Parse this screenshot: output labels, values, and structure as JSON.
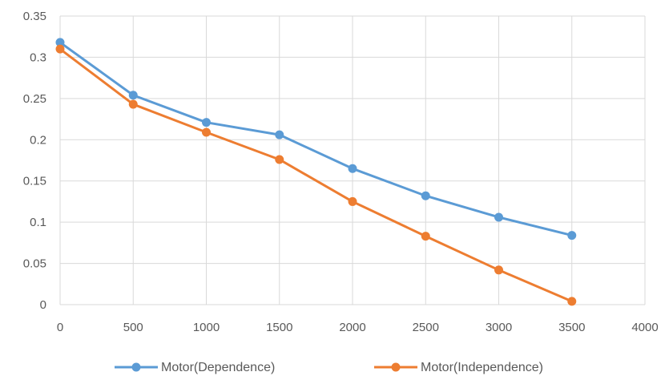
{
  "chart_data": {
    "type": "line",
    "title": "",
    "xlabel": "",
    "ylabel": "",
    "xlim": [
      0,
      4000
    ],
    "ylim": [
      0,
      0.35
    ],
    "x_ticks": [
      "0",
      "500",
      "1000",
      "1500",
      "2000",
      "2500",
      "3000",
      "3500",
      "4000"
    ],
    "y_ticks": [
      "0",
      "0.05",
      "0.1",
      "0.15",
      "0.2",
      "0.25",
      "0.3",
      "0.35"
    ],
    "grid": true,
    "legend_position": "bottom",
    "series": [
      {
        "name": "Motor(Dependence)",
        "color": "#5b9bd5",
        "x": [
          0,
          500,
          1000,
          1500,
          2000,
          2500,
          3000,
          3500
        ],
        "y": [
          0.318,
          0.254,
          0.221,
          0.206,
          0.165,
          0.132,
          0.106,
          0.084
        ]
      },
      {
        "name": "Motor(Independence)",
        "color": "#ed7d31",
        "x": [
          0,
          500,
          1000,
          1500,
          2000,
          2500,
          3000,
          3500
        ],
        "y": [
          0.31,
          0.243,
          0.209,
          0.176,
          0.125,
          0.083,
          0.042,
          0.004
        ]
      }
    ]
  }
}
